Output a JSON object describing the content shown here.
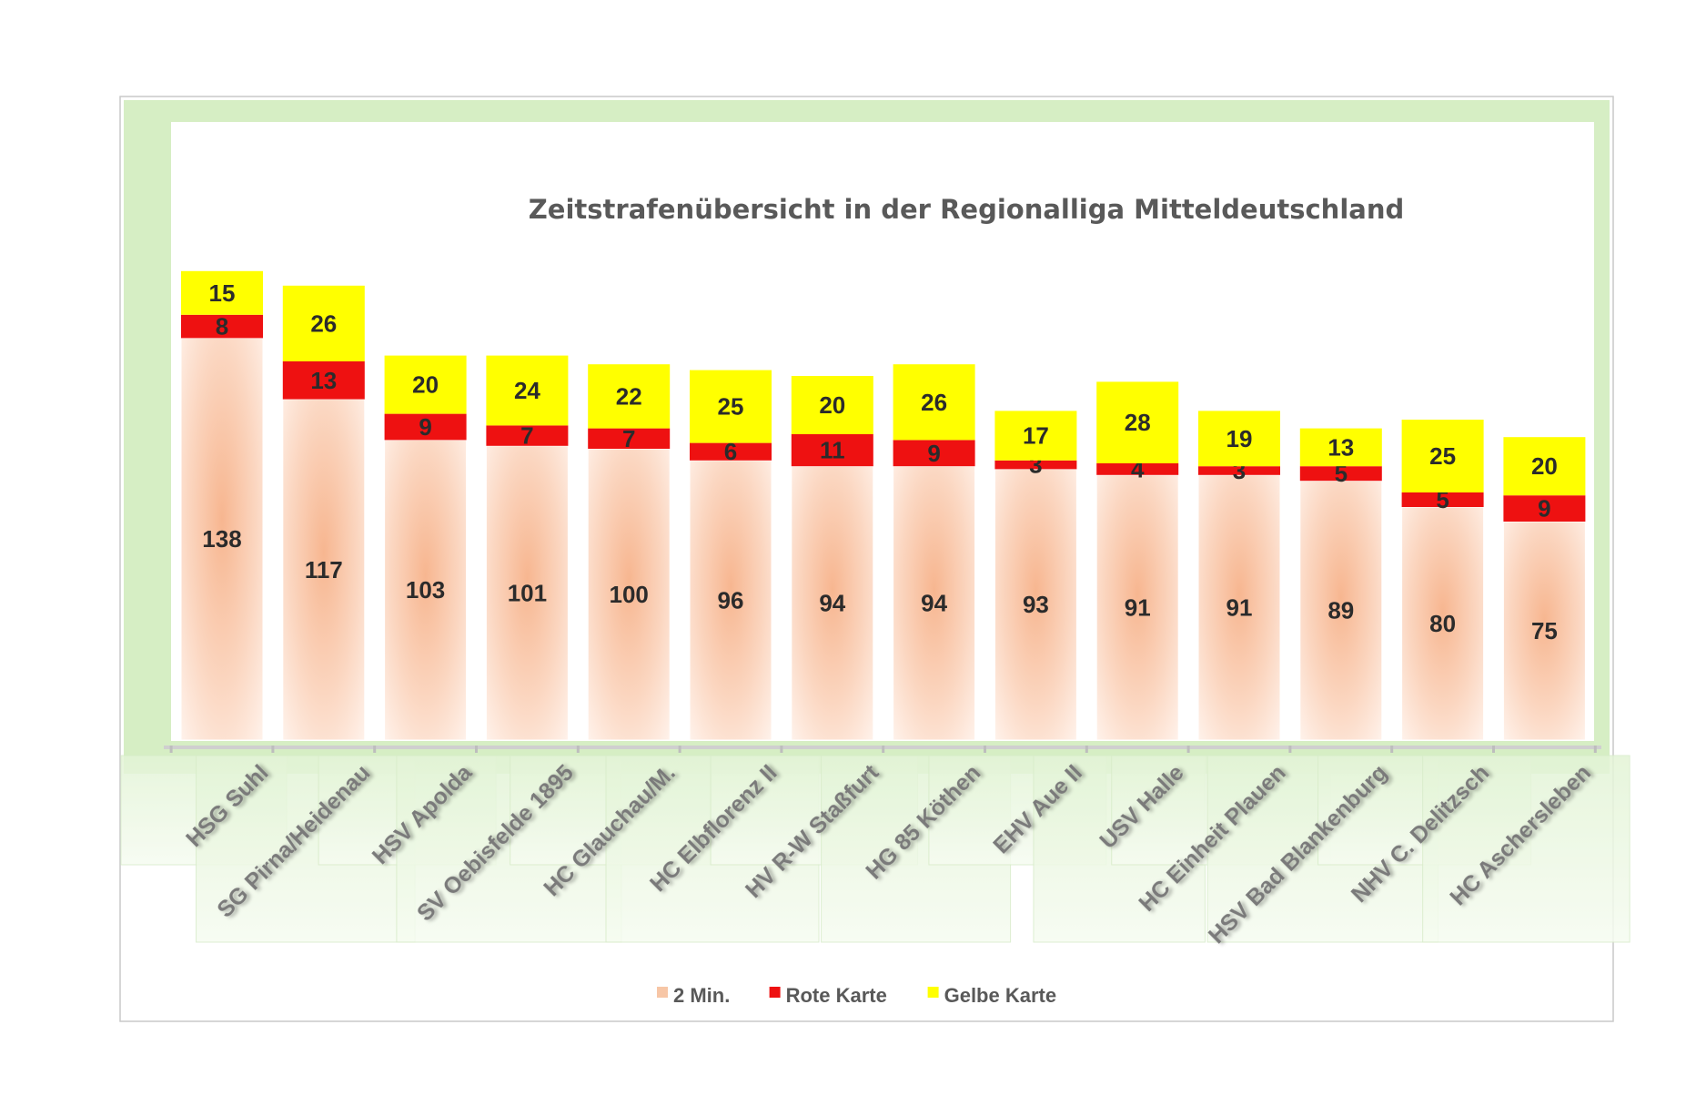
{
  "chart_data": {
    "type": "bar",
    "stacked": true,
    "title": "Zeitstrafenübersicht in der Regionalliga Mitteldeutschland",
    "xlabel": "",
    "ylabel": "",
    "ylim": [
      0,
      170
    ],
    "grid": false,
    "legend_position": "bottom",
    "categories": [
      "HSG Suhl",
      "SG Pirna/Heidenau",
      "HSV Apolda",
      "SV Oebisfelde 1895",
      "HC Glauchau/M.",
      "HC Elbflorenz II",
      "HV R-W Staßfurt",
      "HG 85 Köthen",
      "EHV Aue II",
      "USV Halle",
      "HC Einheit Plauen",
      "HSV Bad Blankenburg",
      "NHV C. Delitzsch",
      "HC Aschersleben"
    ],
    "series": [
      {
        "name": "2 Min.",
        "color": "#f7c6a6",
        "values": [
          138,
          117,
          103,
          101,
          100,
          96,
          94,
          94,
          93,
          91,
          91,
          89,
          80,
          75
        ]
      },
      {
        "name": "Rote Karte",
        "color": "#ee1111",
        "values": [
          8,
          13,
          9,
          7,
          7,
          6,
          11,
          9,
          3,
          4,
          3,
          5,
          5,
          9
        ]
      },
      {
        "name": "Gelbe Karte",
        "color": "#ffff00",
        "values": [
          15,
          26,
          20,
          24,
          22,
          25,
          20,
          26,
          17,
          28,
          19,
          13,
          25,
          20
        ]
      }
    ]
  },
  "colors": {
    "frame_green": "#d4edc0",
    "label_box": "#eef8e6",
    "text_dark": "#2b2b2b",
    "title_gray": "#595959"
  }
}
